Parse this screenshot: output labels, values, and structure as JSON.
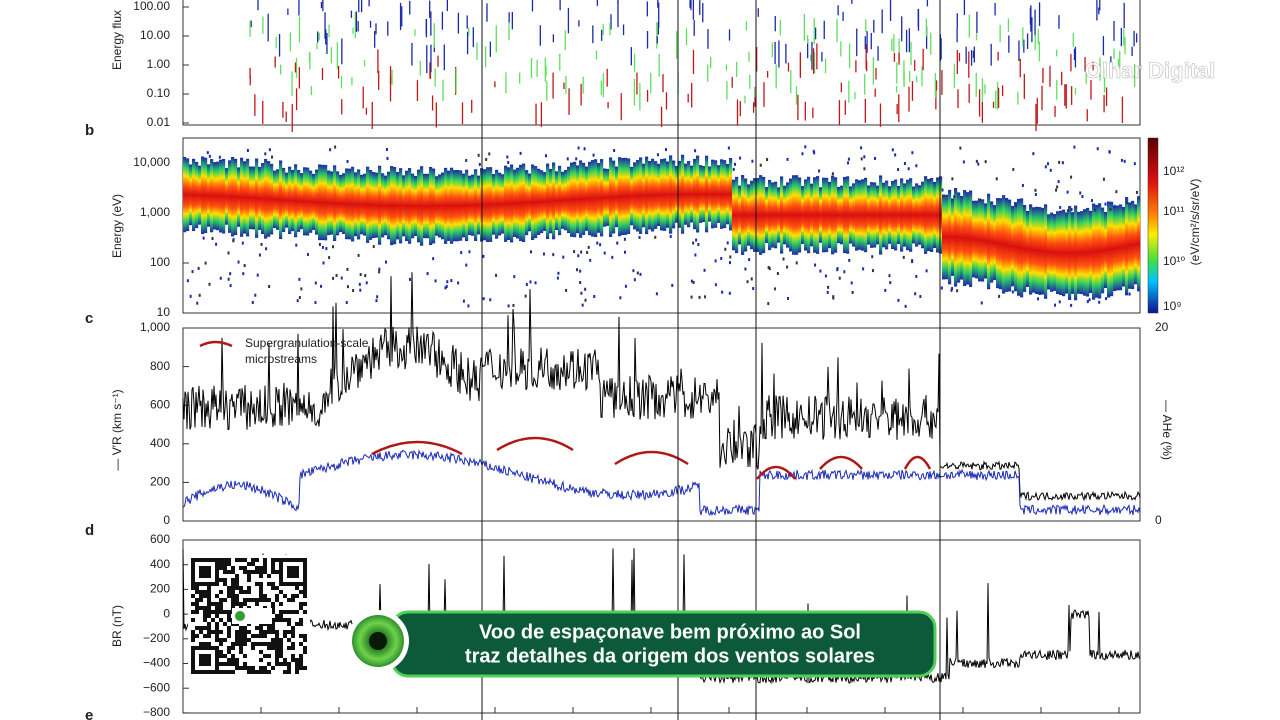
{
  "panel_a": {
    "y_axis_label": "Energy flux",
    "ticks": [
      "100.00",
      "10.00",
      "1.00",
      "0.10",
      "0.01"
    ]
  },
  "panel_b": {
    "label": "b",
    "y_axis_label": "Energy (eV)",
    "ticks": [
      "10,000",
      "1,000",
      "100",
      "10"
    ],
    "colorbar": {
      "unit": "(eV/cm²/s/sr/eV)",
      "ticks": [
        "10¹²",
        "10¹¹",
        "10¹⁰",
        "10⁹"
      ]
    }
  },
  "panel_c": {
    "label": "c",
    "y_axis_label": "— V′R (km s⁻¹)",
    "ticks": [
      "1,000",
      "800",
      "600",
      "400",
      "200",
      "0"
    ],
    "right_axis_label": "— AHe (%)",
    "right_ticks": [
      "20",
      "0"
    ],
    "legend": [
      "Supergranulation-scale",
      "microstreams"
    ]
  },
  "panel_d": {
    "label": "d",
    "y_axis_label": "BR (nT)",
    "ticks": [
      "600",
      "400",
      "200",
      "0",
      "−200",
      "−400",
      "−600",
      "−800"
    ]
  },
  "panel_e": {
    "label": "e"
  },
  "watermark": "Olhar Digital",
  "banner": {
    "lines": [
      "Voo de espaçonave bem próximo ao Sol",
      "traz detalhes da origem dos ventos solares"
    ]
  }
}
